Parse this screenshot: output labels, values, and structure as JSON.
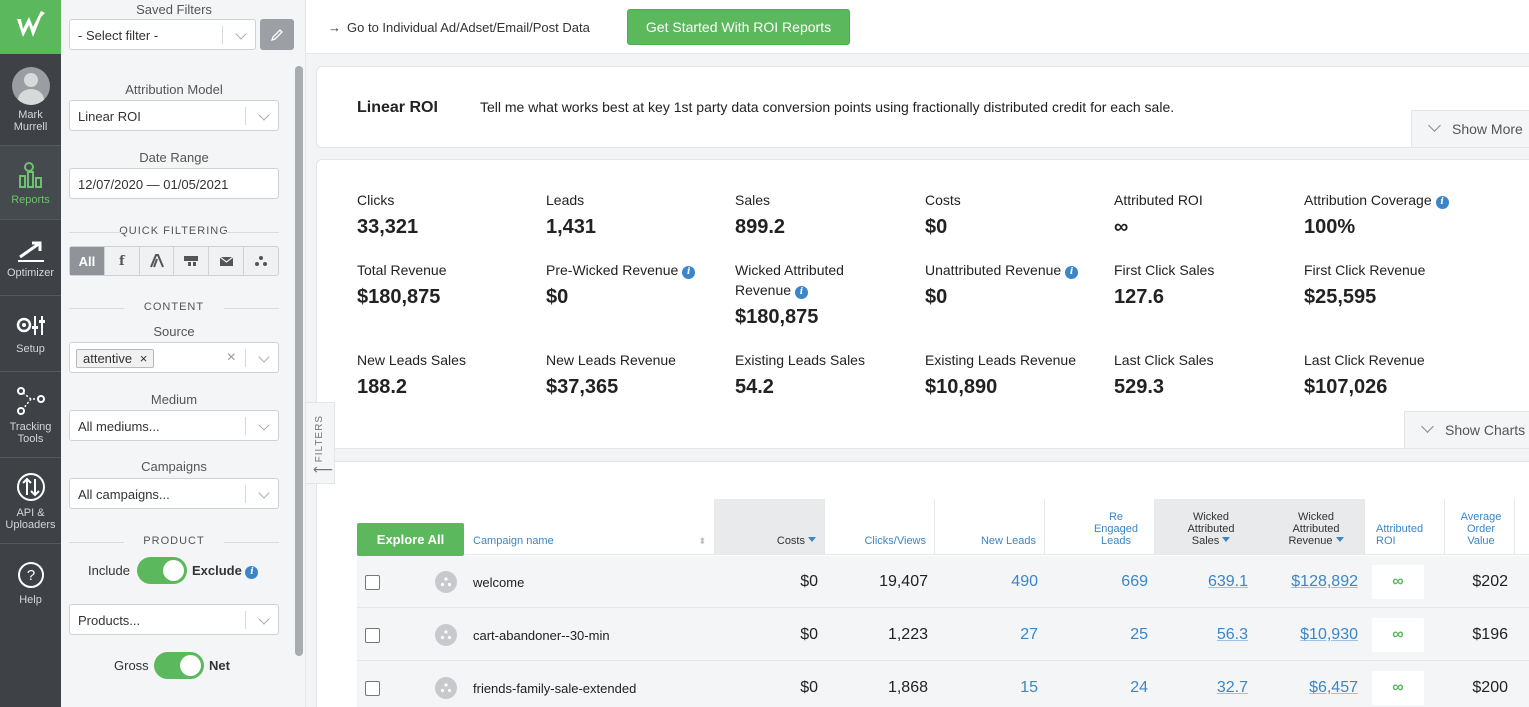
{
  "nav": {
    "user": "Mark Murrell",
    "items": [
      {
        "label": "Reports"
      },
      {
        "label": "Optimizer"
      },
      {
        "label": "Setup"
      },
      {
        "label": "Tracking Tools"
      },
      {
        "label": "API & Uploaders"
      },
      {
        "label": "Help"
      }
    ]
  },
  "filters": {
    "saved_filters_label": "Saved Filters",
    "saved_filter_value": "- Select filter -",
    "attribution_label": "Attribution Model",
    "attribution_value": "Linear ROI",
    "date_label": "Date Range",
    "date_value": "12/07/2020 — 01/05/2021",
    "quick_filtering_label": "QUICK FILTERING",
    "quick_all": "All",
    "quick_f": "f",
    "content_label": "CONTENT",
    "source_label": "Source",
    "source_tag": "attentive",
    "medium_label": "Medium",
    "medium_value": "All mediums...",
    "campaigns_label": "Campaigns",
    "campaigns_value": "All campaigns...",
    "product_label": "PRODUCT",
    "include_label": "Include",
    "exclude_label": "Exclude",
    "products_value": "Products...",
    "gross_label": "Gross",
    "net_label": "Net",
    "tab_label": "FILTERS"
  },
  "topbar": {
    "go_link": "Go to Individual Ad/Adset/Email/Post Data",
    "roi_button": "Get Started With ROI Reports"
  },
  "model": {
    "title": "Linear ROI",
    "description": "Tell me what works best at key 1st party data conversion points using fractionally distributed credit for each sale.",
    "show_more": "Show More"
  },
  "metrics": {
    "clicks": {
      "label": "Clicks",
      "value": "33,321"
    },
    "leads": {
      "label": "Leads",
      "value": "1,431"
    },
    "sales": {
      "label": "Sales",
      "value": "899.2"
    },
    "costs": {
      "label": "Costs",
      "value": "$0"
    },
    "attributed_roi": {
      "label": "Attributed ROI",
      "value": "∞"
    },
    "coverage": {
      "label": "Attribution Coverage",
      "value": "100%"
    },
    "total_revenue": {
      "label": "Total Revenue",
      "value": "$180,875"
    },
    "pre_wicked": {
      "label": "Pre-Wicked Revenue",
      "value": "$0"
    },
    "wicked_attr": {
      "label": "Wicked Attributed Revenue",
      "value": "$180,875"
    },
    "unattributed": {
      "label": "Unattributed Revenue",
      "value": "$0"
    },
    "first_click_sales": {
      "label": "First Click Sales",
      "value": "127.6"
    },
    "first_click_rev": {
      "label": "First Click Revenue",
      "value": "$25,595"
    },
    "new_leads_sales": {
      "label": "New Leads Sales",
      "value": "188.2"
    },
    "new_leads_rev": {
      "label": "New Leads Revenue",
      "value": "$37,365"
    },
    "existing_leads_sales": {
      "label": "Existing Leads Sales",
      "value": "54.2"
    },
    "existing_leads_rev": {
      "label": "Existing Leads Revenue",
      "value": "$10,890"
    },
    "last_click_sales": {
      "label": "Last Click Sales",
      "value": "529.3"
    },
    "last_click_rev": {
      "label": "Last Click Revenue",
      "value": "$107,026"
    },
    "show_charts": "Show Charts"
  },
  "table": {
    "explore_all": "Explore All",
    "headers": {
      "campaign": "Campaign name",
      "costs": "Costs",
      "clicks": "Clicks/Views",
      "new_leads": "New Leads",
      "re_engaged": "Re Engaged Leads",
      "wicked_sales": "Wicked Attributed Sales",
      "wicked_revenue": "Wicked Attributed Revenue",
      "attr_roi": "Attributed ROI",
      "aov": "Average Order Value"
    },
    "rows": [
      {
        "name": "welcome",
        "costs": "$0",
        "clicks": "19,407",
        "new_leads": "490",
        "re_engaged": "669",
        "sales": "639.1",
        "revenue": "$128,892",
        "roi": "∞",
        "aov": "$202"
      },
      {
        "name": "cart-abandoner--30-min",
        "costs": "$0",
        "clicks": "1,223",
        "new_leads": "27",
        "re_engaged": "25",
        "sales": "56.3",
        "revenue": "$10,930",
        "roi": "∞",
        "aov": "$196"
      },
      {
        "name": "friends-family-sale-extended",
        "costs": "$0",
        "clicks": "1,868",
        "new_leads": "15",
        "re_engaged": "24",
        "sales": "32.7",
        "revenue": "$6,457",
        "roi": "∞",
        "aov": "$200"
      }
    ]
  }
}
